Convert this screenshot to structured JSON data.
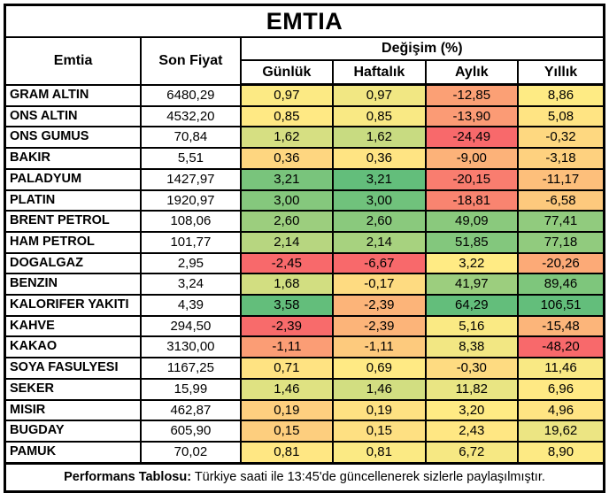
{
  "title": "EMTIA",
  "header": {
    "emtia": "Emtia",
    "son_fiyat": "Son Fiyat",
    "degisim": "Değişim (%)",
    "periods": [
      "Günlük",
      "Haftalık",
      "Aylık",
      "Yıllık"
    ]
  },
  "footer": {
    "label": "Performans Tablosu:",
    "text": "Türkiye saati ile 13:45'de güncellenerek sizlerle paylaşılmıştır."
  },
  "colors": {
    "scale_negative": "#F8696B",
    "scale_neutral": "#FFEB84",
    "scale_positive": "#63BE7B",
    "border": "#000000",
    "background": "#FFFFFF"
  },
  "chart_data": {
    "type": "table",
    "title": "EMTIA",
    "columns": [
      "Emtia",
      "Son Fiyat",
      "Günlük",
      "Haftalık",
      "Aylık",
      "Yıllık"
    ],
    "rows": [
      [
        "GRAM ALTIN",
        "6480,29",
        "0,97",
        "0,97",
        "-12,85",
        "8,86"
      ],
      [
        "ONS ALTIN",
        "4532,20",
        "0,85",
        "0,85",
        "-13,90",
        "5,08"
      ],
      [
        "ONS GUMUS",
        "70,84",
        "1,62",
        "1,62",
        "-24,49",
        "-0,32"
      ],
      [
        "BAKIR",
        "5,51",
        "0,36",
        "0,36",
        "-9,00",
        "-3,18"
      ],
      [
        "PALADYUM",
        "1427,97",
        "3,21",
        "3,21",
        "-20,15",
        "-11,17"
      ],
      [
        "PLATIN",
        "1920,97",
        "3,00",
        "3,00",
        "-18,81",
        "-6,58"
      ],
      [
        "BRENT PETROL",
        "108,06",
        "2,60",
        "2,60",
        "49,09",
        "77,41"
      ],
      [
        "HAM PETROL",
        "101,77",
        "2,14",
        "2,14",
        "51,85",
        "77,18"
      ],
      [
        "DOGALGAZ",
        "2,95",
        "-2,45",
        "-6,67",
        "3,22",
        "-20,26"
      ],
      [
        "BENZIN",
        "3,24",
        "1,68",
        "-0,17",
        "41,97",
        "89,46"
      ],
      [
        "KALORIFER YAKITI",
        "4,39",
        "3,58",
        "-2,39",
        "64,29",
        "106,51"
      ],
      [
        "KAHVE",
        "294,50",
        "-2,39",
        "-2,39",
        "5,16",
        "-15,48"
      ],
      [
        "KAKAO",
        "3130,00",
        "-1,11",
        "-1,11",
        "8,38",
        "-48,20"
      ],
      [
        "SOYA FASULYESI",
        "1167,25",
        "0,71",
        "0,69",
        "-0,30",
        "11,46"
      ],
      [
        "SEKER",
        "15,99",
        "1,46",
        "1,46",
        "11,82",
        "6,96"
      ],
      [
        "MISIR",
        "462,87",
        "0,19",
        "0,19",
        "3,20",
        "4,96"
      ],
      [
        "BUGDAY",
        "605,90",
        "0,15",
        "0,15",
        "2,43",
        "19,62"
      ],
      [
        "PAMUK",
        "70,02",
        "0,81",
        "0,81",
        "6,72",
        "8,90"
      ]
    ],
    "cell_colors": [
      [
        "#FCEA84",
        "#F1E783",
        "#FBA075",
        "#FEEB84"
      ],
      [
        "#FFE984",
        "#F9E984",
        "#FB9B75",
        "#FFE483"
      ],
      [
        "#D6DF82",
        "#C8DB81",
        "#F8696B",
        "#FED880"
      ],
      [
        "#FED680",
        "#FFE483",
        "#FCB279",
        "#FED17F"
      ],
      [
        "#79C47C",
        "#63BE7B",
        "#F97D6F",
        "#FDBF7B"
      ],
      [
        "#85C87D",
        "#70C27C",
        "#F98470",
        "#FDC97D"
      ],
      [
        "#9CCE7E",
        "#8AC97D",
        "#8AC97D",
        "#91CB7E"
      ],
      [
        "#B7D680",
        "#A7D27F",
        "#83C77D",
        "#91CB7E"
      ],
      [
        "#F8696B",
        "#F8696B",
        "#FFEB84",
        "#FCAA77"
      ],
      [
        "#D2DE81",
        "#FEDB81",
        "#9CCE7E",
        "#7EC67C"
      ],
      [
        "#63BE7B",
        "#FCB479",
        "#63BE7B",
        "#63BE7B"
      ],
      [
        "#F86B6B",
        "#FCB479",
        "#FAEA84",
        "#FCB57A"
      ],
      [
        "#FB9D75",
        "#FDCA7D",
        "#F2E783",
        "#F8696B"
      ],
      [
        "#FFE382",
        "#FFEA84",
        "#FEDB81",
        "#F9E984"
      ],
      [
        "#DFE282",
        "#D2DE81",
        "#E9E583",
        "#FFE984"
      ],
      [
        "#FECF7F",
        "#FEE182",
        "#FFEB84",
        "#FFE483"
      ],
      [
        "#FDCE7E",
        "#FEE082",
        "#FFE783",
        "#ECE583"
      ],
      [
        "#FFE783",
        "#FBEA84",
        "#F6E883",
        "#FDEA84"
      ]
    ],
    "color_scale": {
      "min": "#F8696B",
      "mid": "#FFEB84",
      "max": "#63BE7B",
      "applied": "per-column"
    }
  }
}
